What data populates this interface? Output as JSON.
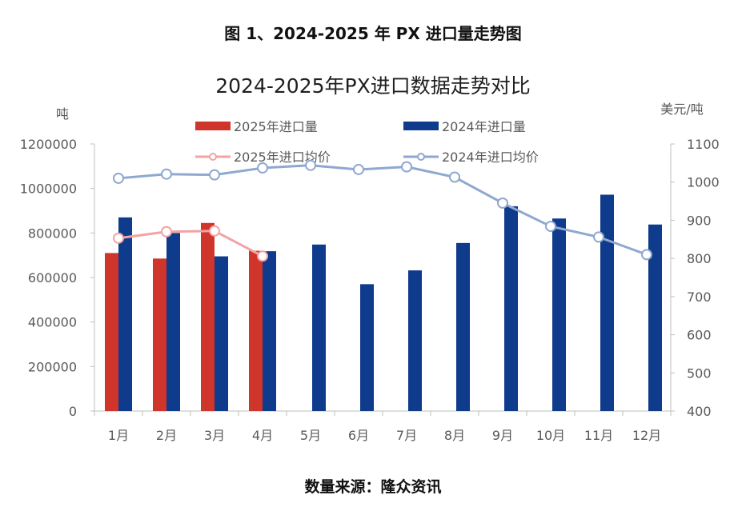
{
  "figure_caption": "图 1、2024-2025 年 PX 进口量走势图",
  "source_note": "数量来源：隆众资讯",
  "colors": {
    "bar_2025": "#d0352b",
    "bar_2024": "#0f3b8c",
    "line_2025": "#f3a3a3",
    "line_2024": "#8fa8cf",
    "axis": "#bfbfbf"
  },
  "chart_data": {
    "type": "bar",
    "title": "2024-2025年PX进口数据走势对比",
    "ylabel": "吨",
    "y2label": "美元/吨",
    "ylim": [
      0,
      1200000
    ],
    "y2lim": [
      400,
      1100
    ],
    "yticks": [
      "0",
      "200000",
      "400000",
      "600000",
      "800000",
      "1000000",
      "1200000"
    ],
    "y2ticks": [
      "400",
      "500",
      "600",
      "700",
      "800",
      "900",
      "1000",
      "1100"
    ],
    "grid": false,
    "legend_position": "top",
    "categories": [
      "1月",
      "2月",
      "3月",
      "4月",
      "5月",
      "6月",
      "7月",
      "8月",
      "9月",
      "10月",
      "11月",
      "12月"
    ],
    "series": [
      {
        "name": "2025年进口量",
        "type": "bar",
        "axis": "left",
        "values": [
          710000,
          685000,
          845000,
          720000,
          null,
          null,
          null,
          null,
          null,
          null,
          null,
          null
        ]
      },
      {
        "name": "2024年进口量",
        "type": "bar",
        "axis": "left",
        "values": [
          870000,
          800000,
          695000,
          718000,
          748000,
          570000,
          632000,
          755000,
          920000,
          865000,
          972000,
          838000
        ]
      },
      {
        "name": "2025年进口均价",
        "type": "line",
        "axis": "right",
        "values": [
          853,
          870,
          872,
          806,
          null,
          null,
          null,
          null,
          null,
          null,
          null,
          null
        ]
      },
      {
        "name": "2024年进口均价",
        "type": "line",
        "axis": "right",
        "values": [
          1010,
          1021,
          1019,
          1037,
          1044,
          1033,
          1040,
          1013,
          945,
          884,
          856,
          810
        ]
      }
    ]
  }
}
